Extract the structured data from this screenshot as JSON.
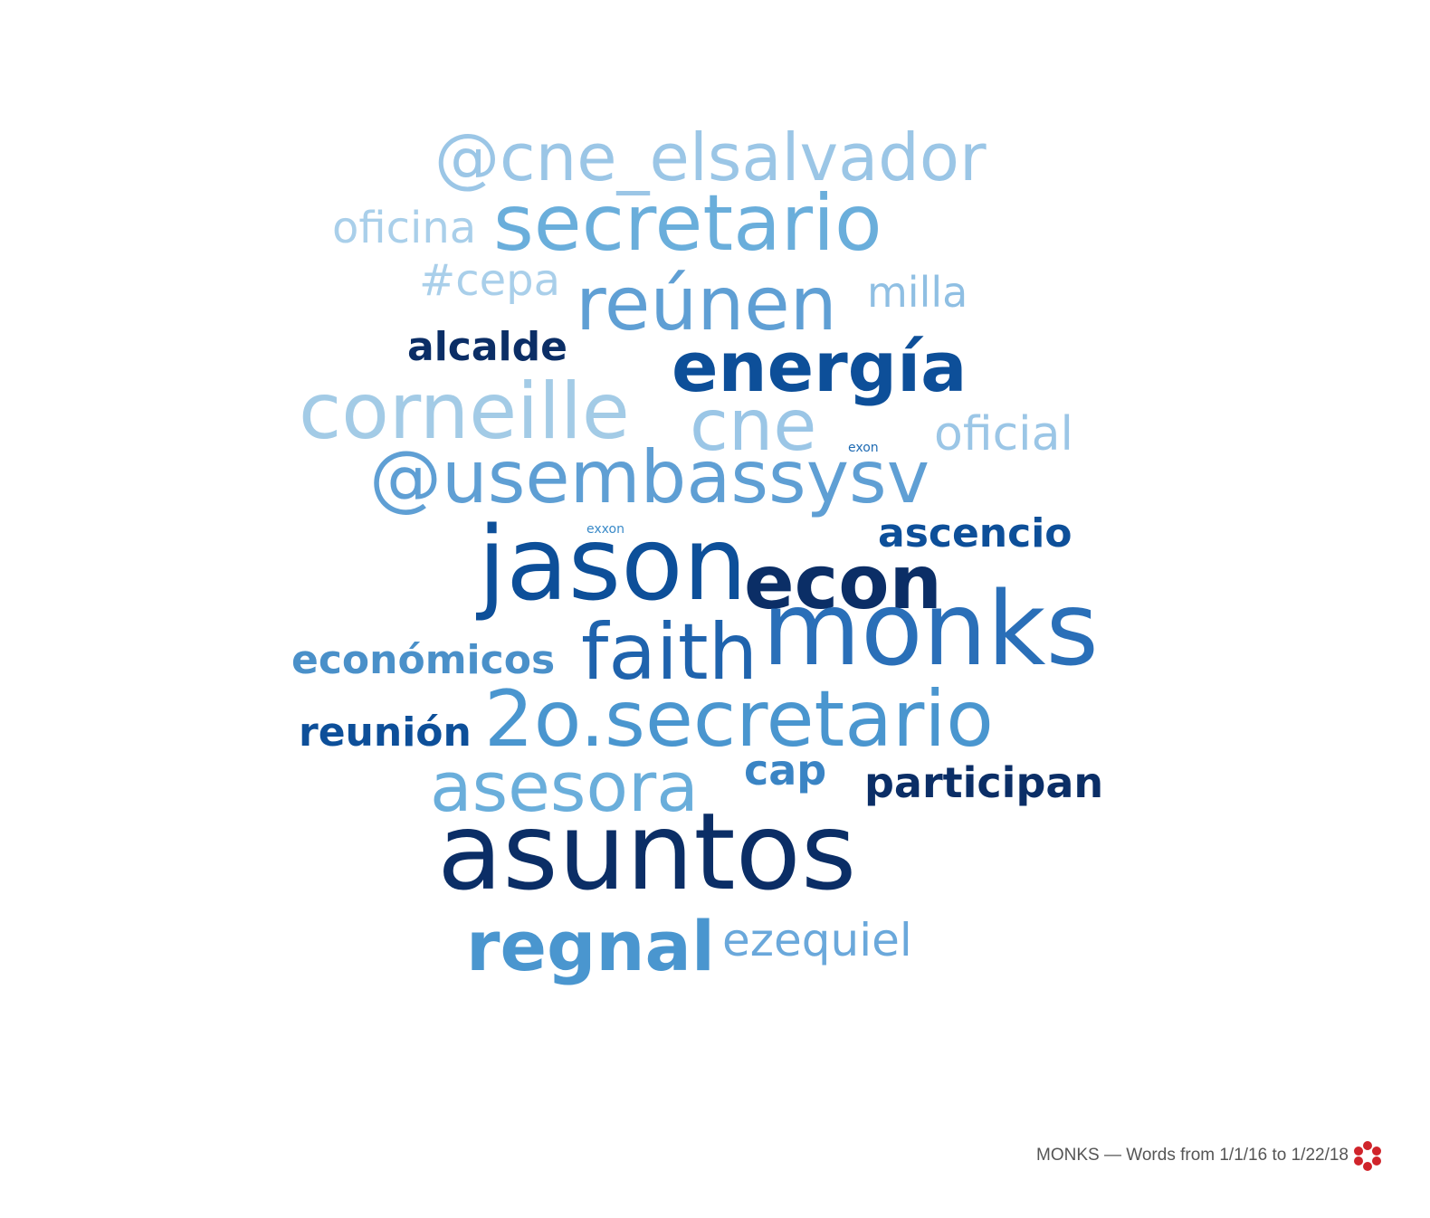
{
  "caption": "MONKS — Words from 1/1/16 to 1/22/18",
  "logo_icon": "red-flower-logo-icon",
  "colors": {
    "darkest": "#0b2e66",
    "dark": "#0d4f99",
    "mid": "#2a78bf",
    "light": "#5fa3d6",
    "lightest": "#9bc6e6"
  },
  "words": [
    {
      "text": "@cne_elsalvador",
      "color": "#9bc6e6"
    },
    {
      "text": "oficina",
      "color": "#a9cfea"
    },
    {
      "text": "secretario",
      "color": "#6aaedb"
    },
    {
      "text": "#cepa",
      "color": "#a9cfea"
    },
    {
      "text": "milla",
      "color": "#8fbfe3"
    },
    {
      "text": "reúnen",
      "color": "#5f9fd4"
    },
    {
      "text": "alcalde",
      "color": "#0b2e66"
    },
    {
      "text": "energía",
      "color": "#0d4f99"
    },
    {
      "text": "corneille",
      "color": "#a3cbe6"
    },
    {
      "text": "cne",
      "color": "#9bc6e6"
    },
    {
      "text": "oficial",
      "color": "#9bc6e6"
    },
    {
      "text": "exon",
      "color": "#1f6bb3"
    },
    {
      "text": "@usembassysv",
      "color": "#5f9fd4"
    },
    {
      "text": "exxon",
      "color": "#3a8ac8"
    },
    {
      "text": "ascencio",
      "color": "#0d4f99"
    },
    {
      "text": "jason",
      "color": "#0d4f99"
    },
    {
      "text": "econ",
      "color": "#0b2e66"
    },
    {
      "text": "monks",
      "color": "#2a6fb8"
    },
    {
      "text": "faith",
      "color": "#1f63ad"
    },
    {
      "text": "económicos",
      "color": "#4a90c9"
    },
    {
      "text": "2o.secretario",
      "color": "#4a96cf"
    },
    {
      "text": "reunión",
      "color": "#0d4f99"
    },
    {
      "text": "asesora",
      "color": "#6aaedb"
    },
    {
      "text": "cap",
      "color": "#3a84c4"
    },
    {
      "text": "participan",
      "color": "#0b2e66"
    },
    {
      "text": "asuntos",
      "color": "#0b2e66"
    },
    {
      "text": "regnal",
      "color": "#4a96cf"
    },
    {
      "text": "ezequiel",
      "color": "#6aa8db"
    }
  ]
}
